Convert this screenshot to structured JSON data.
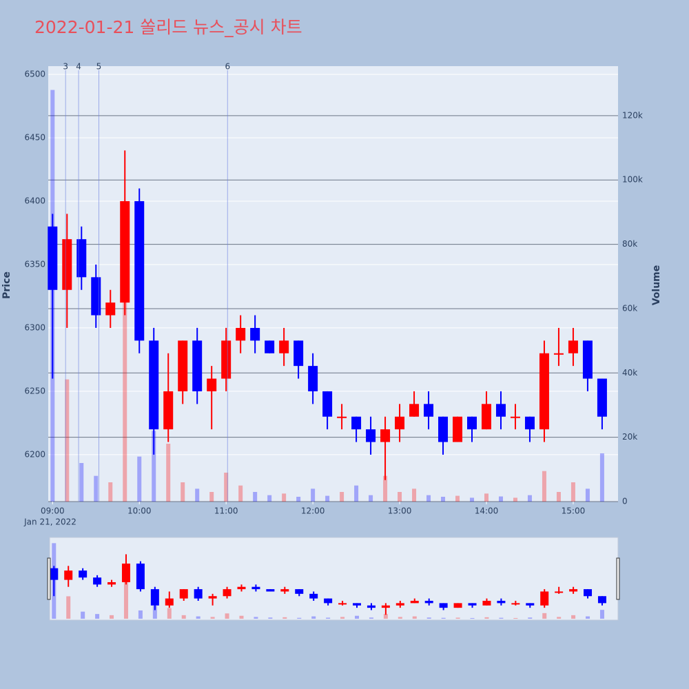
{
  "chart_data": {
    "type": "candlestick",
    "title": "2022-01-21 쏠리드 뉴스_공시 차트",
    "ylabel": "Price",
    "y2label": "Volume",
    "x_date_label": "Jan 21, 2022",
    "x": [
      "2022-01-21 09:00",
      "2022-01-21 09:10",
      "2022-01-21 09:20",
      "2022-01-21 09:30",
      "2022-01-21 09:40",
      "2022-01-21 09:50",
      "2022-01-21 10:00",
      "2022-01-21 10:10",
      "2022-01-21 10:20",
      "2022-01-21 10:30",
      "2022-01-21 10:40",
      "2022-01-21 10:50",
      "2022-01-21 11:00",
      "2022-01-21 11:10",
      "2022-01-21 11:20",
      "2022-01-21 11:30",
      "2022-01-21 11:40",
      "2022-01-21 11:50",
      "2022-01-21 12:00",
      "2022-01-21 12:10",
      "2022-01-21 12:20",
      "2022-01-21 12:30",
      "2022-01-21 12:40",
      "2022-01-21 12:50",
      "2022-01-21 13:00",
      "2022-01-21 13:10",
      "2022-01-21 13:20",
      "2022-01-21 13:30",
      "2022-01-21 13:40",
      "2022-01-21 13:50",
      "2022-01-21 14:00",
      "2022-01-21 14:10",
      "2022-01-21 14:20",
      "2022-01-21 14:30",
      "2022-01-21 14:40",
      "2022-01-21 14:50",
      "2022-01-21 15:00",
      "2022-01-21 15:10",
      "2022-01-21 15:20"
    ],
    "open": [
      6380,
      6330,
      6370,
      6340,
      6310,
      6320,
      6400,
      6290,
      6220,
      6250,
      6290,
      6250,
      6260,
      6290,
      6300,
      6290,
      6280,
      6290,
      6270,
      6250,
      6230,
      6230,
      6220,
      6210,
      6220,
      6230,
      6240,
      6230,
      6210,
      6230,
      6220,
      6240,
      6230,
      6230,
      6220,
      6280,
      6280,
      6290,
      6260
    ],
    "high": [
      6390,
      6390,
      6380,
      6350,
      6330,
      6440,
      6410,
      6300,
      6280,
      6290,
      6300,
      6270,
      6300,
      6310,
      6310,
      6290,
      6300,
      6290,
      6280,
      6250,
      6240,
      6230,
      6230,
      6230,
      6240,
      6250,
      6250,
      6230,
      6230,
      6230,
      6250,
      6250,
      6240,
      6230,
      6290,
      6300,
      6300,
      6290,
      6260
    ],
    "low": [
      6260,
      6300,
      6330,
      6300,
      6300,
      6310,
      6280,
      6200,
      6210,
      6240,
      6240,
      6220,
      6250,
      6280,
      6280,
      6280,
      6270,
      6260,
      6240,
      6220,
      6220,
      6210,
      6200,
      6180,
      6210,
      6230,
      6220,
      6200,
      6210,
      6210,
      6220,
      6220,
      6220,
      6210,
      6210,
      6270,
      6270,
      6250,
      6220
    ],
    "close": [
      6330,
      6370,
      6340,
      6310,
      6320,
      6400,
      6290,
      6220,
      6250,
      6290,
      6250,
      6260,
      6290,
      6300,
      6290,
      6280,
      6290,
      6270,
      6250,
      6230,
      6230,
      6220,
      6210,
      6220,
      6230,
      6240,
      6230,
      6210,
      6230,
      6220,
      6240,
      6230,
      6230,
      6220,
      6280,
      6280,
      6290,
      6260,
      6230
    ],
    "volume": [
      128000,
      38000,
      12000,
      8000,
      6000,
      65000,
      14000,
      22000,
      18000,
      6000,
      4000,
      3000,
      9000,
      5000,
      3000,
      2000,
      2500,
      1500,
      4000,
      1800,
      3000,
      5000,
      2000,
      8000,
      3000,
      4000,
      2000,
      1500,
      1800,
      1200,
      2500,
      1600,
      1200,
      2000,
      9500,
      3000,
      6000,
      4000,
      15000
    ],
    "increasing_color": "#ff0000",
    "decreasing_color": "#0000ff",
    "xlim": [
      "2022-01-21 08:57",
      "2022-01-21 15:31"
    ],
    "xticks": [
      {
        "value": "2022-01-21 09:00",
        "label": "09:00"
      },
      {
        "value": "2022-01-21 10:00",
        "label": "10:00"
      },
      {
        "value": "2022-01-21 11:00",
        "label": "11:00"
      },
      {
        "value": "2022-01-21 12:00",
        "label": "12:00"
      },
      {
        "value": "2022-01-21 13:00",
        "label": "13:00"
      },
      {
        "value": "2022-01-21 14:00",
        "label": "14:00"
      },
      {
        "value": "2022-01-21 15:00",
        "label": "15:00"
      }
    ],
    "ylim": [
      6163,
      6506.5
    ],
    "yticks": [
      6200,
      6250,
      6300,
      6350,
      6400,
      6450,
      6500
    ],
    "y2lim": [
      0,
      135400
    ],
    "y2ticks": [
      0,
      {
        "value": 20000,
        "label": "20k"
      },
      {
        "value": 40000,
        "label": "40k"
      },
      {
        "value": 60000,
        "label": "60k"
      },
      {
        "value": 80000,
        "label": "80k"
      },
      {
        "value": 100000,
        "label": "100k"
      },
      {
        "value": 120000,
        "label": "120k"
      }
    ],
    "events": [
      {
        "x": "2022-01-21 09:09",
        "label": "3"
      },
      {
        "x": "2022-01-21 09:18",
        "label": "4"
      },
      {
        "x": "2022-01-21 09:32",
        "label": "5"
      },
      {
        "x": "2022-01-21 11:01",
        "label": "6"
      }
    ]
  }
}
